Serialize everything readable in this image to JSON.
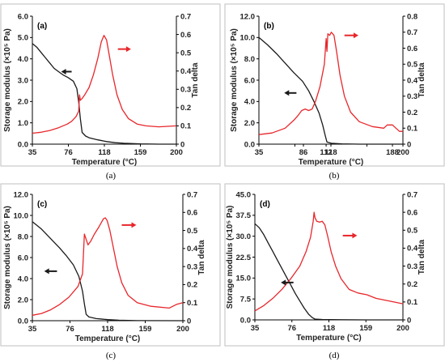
{
  "figure": {
    "captions": [
      "(a)",
      "(b)",
      "(c)",
      "(d)"
    ]
  },
  "colors": {
    "storage": "#1a1a1a",
    "tan": "#e8262b",
    "axis": "#000000",
    "frame": "#bfbfbf"
  },
  "chart_data": [
    {
      "type": "line",
      "panel_label": "(a)",
      "xlabel": "Temperature (°C)",
      "ylabel": "Storage modulus (×10⁵ Pa)",
      "y2label": "Tan delta",
      "xlim": [
        35,
        200
      ],
      "xticks": [
        "35",
        "76",
        "118",
        "159",
        "200"
      ],
      "ylim": [
        0,
        6
      ],
      "yticks": [
        "0.0",
        "1.0",
        "2.0",
        "3.0",
        "4.0",
        "5.0",
        "6.0"
      ],
      "y2lim": [
        0,
        0.7
      ],
      "y2ticks": [
        "0",
        "0.1",
        "0.2",
        "0.3",
        "0.4",
        "0.5",
        "0.6",
        "0.7"
      ],
      "series": [
        {
          "axis": "left",
          "points": [
            [
              35,
              4.72
            ],
            [
              40,
              4.55
            ],
            [
              45,
              4.3
            ],
            [
              50,
              4.05
            ],
            [
              55,
              3.8
            ],
            [
              60,
              3.55
            ],
            [
              65,
              3.4
            ],
            [
              70,
              3.25
            ],
            [
              76,
              3.12
            ],
            [
              82,
              2.95
            ],
            [
              86,
              2.6
            ],
            [
              88,
              2.0
            ],
            [
              90,
              1.2
            ],
            [
              92,
              0.55
            ],
            [
              96,
              0.38
            ],
            [
              100,
              0.3
            ],
            [
              110,
              0.2
            ],
            [
              120,
              0.12
            ],
            [
              130,
              0.07
            ],
            [
              140,
              0.04
            ],
            [
              159,
              0.01
            ],
            [
              180,
              0.0
            ],
            [
              200,
              0.0
            ]
          ]
        },
        {
          "axis": "right",
          "points": [
            [
              35,
              0.06
            ],
            [
              45,
              0.065
            ],
            [
              55,
              0.075
            ],
            [
              65,
              0.09
            ],
            [
              75,
              0.11
            ],
            [
              80,
              0.125
            ],
            [
              85,
              0.15
            ],
            [
              88,
              0.18
            ],
            [
              89,
              0.27
            ],
            [
              90,
              0.24
            ],
            [
              92,
              0.25
            ],
            [
              95,
              0.27
            ],
            [
              100,
              0.31
            ],
            [
              105,
              0.38
            ],
            [
              110,
              0.47
            ],
            [
              114,
              0.56
            ],
            [
              117,
              0.595
            ],
            [
              120,
              0.57
            ],
            [
              123,
              0.49
            ],
            [
              127,
              0.38
            ],
            [
              132,
              0.27
            ],
            [
              138,
              0.19
            ],
            [
              145,
              0.14
            ],
            [
              155,
              0.11
            ],
            [
              165,
              0.1
            ],
            [
              180,
              0.095
            ],
            [
              200,
              0.1
            ]
          ]
        }
      ],
      "arrows": [
        {
          "direction": "left",
          "at": [
            80,
            3.4
          ],
          "length_x": 12
        },
        {
          "direction": "right",
          "at": [
            133,
            0.52
          ],
          "length_x": 15
        }
      ]
    },
    {
      "type": "line",
      "panel_label": "(b)",
      "xlabel": "Temperature (°C)",
      "ylabel": "Storage modulus (×10⁵ Pa)",
      "y2label": "Tan delta",
      "xlim": [
        35,
        200
      ],
      "xticks": [
        "35",
        "",
        "118",
        "",
        "200"
      ],
      "ylim": [
        0,
        12
      ],
      "yticks": [
        "0.0",
        "2.0",
        "4.0",
        "6.0",
        "8.0",
        "10.0",
        "12.0"
      ],
      "y2lim": [
        0,
        0.8
      ],
      "y2ticks": [
        "0",
        "0.1",
        "0.2",
        "0.3",
        "0.4",
        "0.5",
        "0.6",
        "0.7",
        "0.8"
      ],
      "extra_xticks": [
        {
          "value": 86,
          "label": "86"
        },
        {
          "value": 112,
          "label": "112"
        },
        {
          "value": 188,
          "label": "188"
        }
      ],
      "series": [
        {
          "axis": "left",
          "points": [
            [
              35,
              10.0
            ],
            [
              45,
              9.3
            ],
            [
              55,
              8.5
            ],
            [
              65,
              7.6
            ],
            [
              75,
              6.7
            ],
            [
              85,
              5.9
            ],
            [
              92,
              5.0
            ],
            [
              98,
              4.0
            ],
            [
              104,
              2.9
            ],
            [
              108,
              1.8
            ],
            [
              111,
              0.8
            ],
            [
              113,
              0.2
            ],
            [
              118,
              0.08
            ],
            [
              130,
              0.03
            ],
            [
              150,
              0.0
            ],
            [
              200,
              0.0
            ]
          ]
        },
        {
          "axis": "right",
          "points": [
            [
              35,
              0.06
            ],
            [
              50,
              0.07
            ],
            [
              65,
              0.1
            ],
            [
              75,
              0.15
            ],
            [
              80,
              0.18
            ],
            [
              84,
              0.21
            ],
            [
              88,
              0.22
            ],
            [
              92,
              0.21
            ],
            [
              96,
              0.22
            ],
            [
              100,
              0.27
            ],
            [
              105,
              0.36
            ],
            [
              110,
              0.5
            ],
            [
              112,
              0.66
            ],
            [
              113,
              0.58
            ],
            [
              114,
              0.69
            ],
            [
              116,
              0.68
            ],
            [
              118,
              0.7
            ],
            [
              121,
              0.68
            ],
            [
              124,
              0.58
            ],
            [
              128,
              0.43
            ],
            [
              133,
              0.3
            ],
            [
              140,
              0.2
            ],
            [
              150,
              0.14
            ],
            [
              165,
              0.11
            ],
            [
              178,
              0.1
            ],
            [
              182,
              0.12
            ],
            [
              188,
              0.12
            ],
            [
              192,
              0.1
            ],
            [
              196,
              0.08
            ],
            [
              200,
              0.08
            ]
          ]
        }
      ],
      "arrows": [
        {
          "direction": "left",
          "at": [
            78,
            4.8
          ],
          "length_x": 14
        },
        {
          "direction": "right",
          "at": [
            133,
            0.68
          ],
          "length_x": 16
        }
      ]
    },
    {
      "type": "line",
      "panel_label": "(c)",
      "xlabel": "Temperature (°C)",
      "ylabel": "Storage modulus (×10⁵ Pa)",
      "y2label": "Tan delta",
      "xlim": [
        35,
        200
      ],
      "xticks": [
        "35",
        "76",
        "118",
        "159",
        "200"
      ],
      "ylim": [
        0,
        12
      ],
      "yticks": [
        "0.0",
        "2.0",
        "4.0",
        "6.0",
        "8.0",
        "10.0",
        "12.0"
      ],
      "y2lim": [
        0,
        0.7
      ],
      "y2ticks": [
        "0",
        "0.1",
        "0.2",
        "0.3",
        "0.4",
        "0.5",
        "0.6",
        "0.7"
      ],
      "series": [
        {
          "axis": "left",
          "points": [
            [
              35,
              9.4
            ],
            [
              45,
              8.7
            ],
            [
              55,
              7.8
            ],
            [
              65,
              6.9
            ],
            [
              72,
              6.2
            ],
            [
              80,
              5.3
            ],
            [
              86,
              4.2
            ],
            [
              90,
              2.8
            ],
            [
              92,
              1.6
            ],
            [
              94,
              0.6
            ],
            [
              97,
              0.35
            ],
            [
              105,
              0.2
            ],
            [
              118,
              0.1
            ],
            [
              130,
              0.05
            ],
            [
              150,
              0.01
            ],
            [
              200,
              0.0
            ]
          ]
        },
        {
          "axis": "right",
          "points": [
            [
              35,
              0.03
            ],
            [
              45,
              0.04
            ],
            [
              55,
              0.06
            ],
            [
              65,
              0.09
            ],
            [
              75,
              0.13
            ],
            [
              85,
              0.19
            ],
            [
              90,
              0.26
            ],
            [
              92,
              0.48
            ],
            [
              94,
              0.45
            ],
            [
              96,
              0.42
            ],
            [
              99,
              0.44
            ],
            [
              103,
              0.48
            ],
            [
              108,
              0.52
            ],
            [
              113,
              0.565
            ],
            [
              115,
              0.57
            ],
            [
              117,
              0.555
            ],
            [
              120,
              0.5
            ],
            [
              124,
              0.4
            ],
            [
              128,
              0.3
            ],
            [
              133,
              0.21
            ],
            [
              140,
              0.14
            ],
            [
              150,
              0.1
            ],
            [
              165,
              0.08
            ],
            [
              185,
              0.07
            ],
            [
              193,
              0.09
            ],
            [
              200,
              0.1
            ]
          ]
        }
      ],
      "arrows": [
        {
          "direction": "left",
          "at": [
            62,
            4.7
          ],
          "length_x": 14
        },
        {
          "direction": "right",
          "at": [
            133,
            0.53
          ],
          "length_x": 16
        }
      ]
    },
    {
      "type": "line",
      "panel_label": "(d)",
      "xlabel": "Temperature (°C)",
      "ylabel": "Storage modulus (×10⁵ Pa)",
      "y2label": "Tan delta",
      "xlim": [
        35,
        200
      ],
      "xticks": [
        "35",
        "76",
        "118",
        "159",
        "200"
      ],
      "ylim": [
        0,
        45
      ],
      "yticks": [
        "0.0",
        "7.5",
        "15.0",
        "22.5",
        "30.0",
        "37.5",
        "45.0"
      ],
      "y2lim": [
        0,
        0.7
      ],
      "y2ticks": [
        "0",
        "0.1",
        "0.2",
        "0.3",
        "0.4",
        "0.5",
        "0.6",
        "0.7"
      ],
      "series": [
        {
          "axis": "left",
          "points": [
            [
              35,
              34.5
            ],
            [
              40,
              33.0
            ],
            [
              45,
              30.5
            ],
            [
              50,
              27.5
            ],
            [
              55,
              24.5
            ],
            [
              60,
              21.5
            ],
            [
              65,
              18.5
            ],
            [
              70,
              15.5
            ],
            [
              75,
              12.5
            ],
            [
              80,
              9.5
            ],
            [
              85,
              6.8
            ],
            [
              90,
              4.2
            ],
            [
              95,
              2.0
            ],
            [
              99,
              0.8
            ],
            [
              102,
              0.3
            ],
            [
              110,
              0.15
            ],
            [
              130,
              0.05
            ],
            [
              160,
              0.0
            ],
            [
              200,
              0.0
            ]
          ]
        },
        {
          "axis": "right",
          "points": [
            [
              35,
              0.05
            ],
            [
              45,
              0.08
            ],
            [
              55,
              0.12
            ],
            [
              65,
              0.17
            ],
            [
              75,
              0.23
            ],
            [
              85,
              0.3
            ],
            [
              92,
              0.38
            ],
            [
              97,
              0.46
            ],
            [
              100,
              0.55
            ],
            [
              101,
              0.6
            ],
            [
              102,
              0.57
            ],
            [
              104,
              0.55
            ],
            [
              107,
              0.545
            ],
            [
              110,
              0.55
            ],
            [
              113,
              0.53
            ],
            [
              116,
              0.47
            ],
            [
              120,
              0.38
            ],
            [
              125,
              0.3
            ],
            [
              131,
              0.23
            ],
            [
              140,
              0.17
            ],
            [
              150,
              0.15
            ],
            [
              160,
              0.14
            ],
            [
              170,
              0.12
            ],
            [
              180,
              0.11
            ],
            [
              190,
              0.1
            ],
            [
              200,
              0.09
            ]
          ]
        }
      ],
      "arrows": [
        {
          "direction": "left",
          "at": [
            78,
            13.4
          ],
          "length_x": 14
        },
        {
          "direction": "right",
          "at": [
            133,
            0.47
          ],
          "length_x": 16
        }
      ]
    }
  ]
}
